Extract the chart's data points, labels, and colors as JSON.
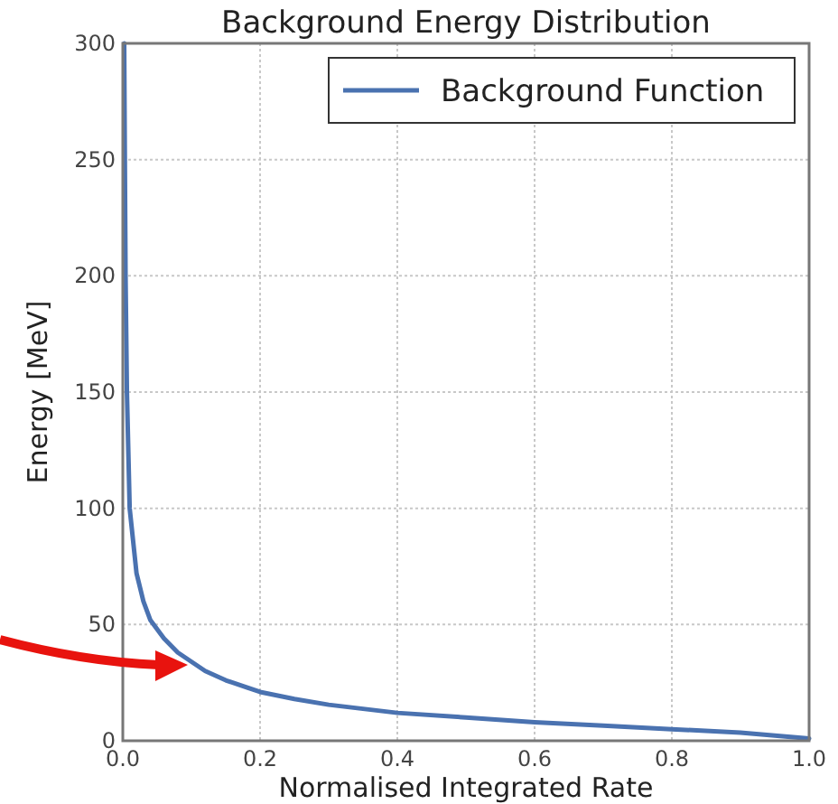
{
  "chart_data": {
    "type": "line",
    "title": "Background Energy Distribution",
    "xlabel": "Normalised Integrated Rate",
    "ylabel": "Energy [MeV]",
    "xlim": [
      0,
      1
    ],
    "ylim": [
      0,
      300
    ],
    "xticks": [
      {
        "value": 0,
        "label": "0.0"
      },
      {
        "value": 0.2,
        "label": "0.2"
      },
      {
        "value": 0.4,
        "label": "0.4"
      },
      {
        "value": 0.6,
        "label": "0.6"
      },
      {
        "value": 0.8,
        "label": "0.8"
      },
      {
        "value": 1,
        "label": "1.0"
      }
    ],
    "yticks": [
      0,
      50,
      100,
      150,
      200,
      250,
      300
    ],
    "grid": true,
    "legend": "top right",
    "line_style": "solid",
    "series": [
      {
        "name": "Background Function",
        "color": "#4a72b0",
        "x": [
          0.002,
          0.004,
          0.006,
          0.01,
          0.02,
          0.03,
          0.04,
          0.06,
          0.08,
          0.1,
          0.12,
          0.15,
          0.2,
          0.25,
          0.3,
          0.4,
          0.5,
          0.6,
          0.7,
          0.8,
          0.9,
          1.0
        ],
        "values": [
          300,
          200,
          150,
          100,
          72,
          60,
          52,
          44,
          38,
          34,
          30,
          26,
          21,
          18,
          15.5,
          12,
          10,
          8,
          6.5,
          5,
          3.5,
          1
        ]
      }
    ]
  }
}
